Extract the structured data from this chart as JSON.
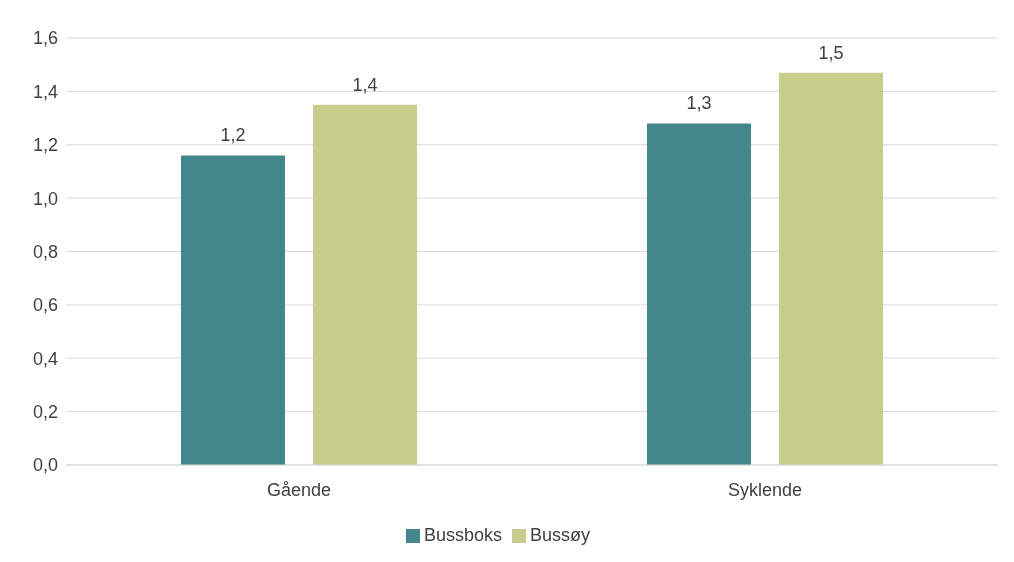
{
  "chart_data": {
    "type": "bar",
    "categories": [
      "Gående",
      "Syklende"
    ],
    "series": [
      {
        "name": "Bussboks",
        "color": "#41878b",
        "values": [
          1.16,
          1.28
        ],
        "value_labels": [
          "1,2",
          "1,3"
        ]
      },
      {
        "name": "Bussøy",
        "color": "#c8cd8e",
        "values": [
          1.35,
          1.47
        ],
        "value_labels": [
          "1,4",
          "1,5"
        ]
      }
    ],
    "ylim": [
      0,
      1.6
    ],
    "yticks": [
      {
        "value": 0,
        "label": "0,0"
      },
      {
        "value": 0.2,
        "label": "0,2"
      },
      {
        "value": 0.4,
        "label": "0,4"
      },
      {
        "value": 0.6,
        "label": "0,6"
      },
      {
        "value": 0.8,
        "label": "0,8"
      },
      {
        "value": 1,
        "label": "1,0"
      },
      {
        "value": 1.2,
        "label": "1,2"
      },
      {
        "value": 1.4,
        "label": "1,4"
      },
      {
        "value": 1.6,
        "label": "1,6"
      }
    ],
    "grid": "y",
    "legend": "bottom"
  }
}
